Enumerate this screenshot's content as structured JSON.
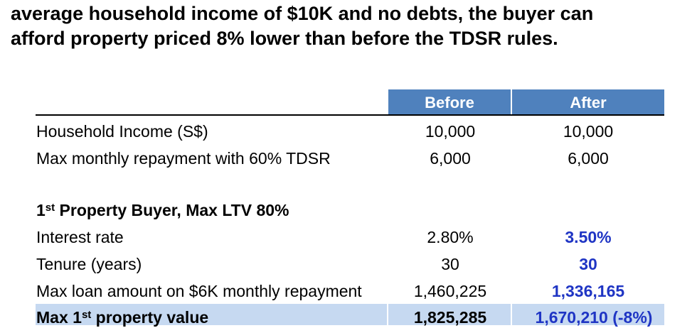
{
  "heading": {
    "line1": "average household income of $10K and no debts, the buyer can",
    "line2": "afford property priced 8% lower than before the TDSR rules."
  },
  "table": {
    "columns": [
      "Before",
      "After"
    ],
    "rows": [
      {
        "label": "Household Income (S$)",
        "before": "10,000",
        "after": "10,000"
      },
      {
        "label": "Max monthly repayment with 60% TDSR",
        "before": "6,000",
        "after": "6,000"
      }
    ],
    "section": {
      "ordinal_num": "1",
      "ordinal_suffix": "st",
      "title_rest": " Property Buyer, Max LTV 80%"
    },
    "section_rows": [
      {
        "label": "Interest rate",
        "before": "2.80%",
        "after": "3.50%"
      },
      {
        "label": "Tenure (years)",
        "before": "30",
        "after": "30"
      },
      {
        "label": "Max loan amount on $6K monthly repayment",
        "before": "1,460,225",
        "after": "1,336,165"
      }
    ],
    "total_row": {
      "label_prefix": "Max 1",
      "label_suffix": "st",
      "label_rest": " property value",
      "before": "1,825,285",
      "after": "1,670,210 (-8%)"
    }
  },
  "colors": {
    "header_blue": "#4f81bd",
    "highlight_row": "#c6d9f1",
    "emphasis_text": "#1f35c4"
  }
}
